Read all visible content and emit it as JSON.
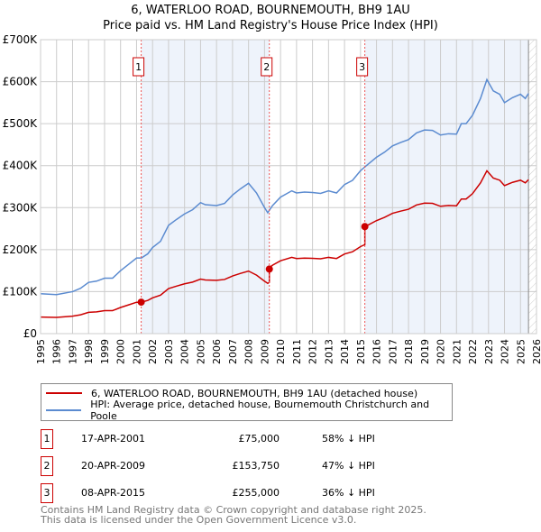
{
  "chart_data": {
    "type": "line",
    "title": "6, WATERLOO ROAD, BOURNEMOUTH, BH9 1AU",
    "subtitle": "Price paid vs. HM Land Registry's House Price Index (HPI)",
    "xlim": [
      1995,
      2026
    ],
    "ylim": [
      0,
      700000
    ],
    "yticks": [
      {
        "v": 0,
        "label": "£0"
      },
      {
        "v": 100000,
        "label": "£100K"
      },
      {
        "v": 200000,
        "label": "£200K"
      },
      {
        "v": 300000,
        "label": "£300K"
      },
      {
        "v": 400000,
        "label": "£400K"
      },
      {
        "v": 500000,
        "label": "£500K"
      },
      {
        "v": 600000,
        "label": "£600K"
      },
      {
        "v": 700000,
        "label": "£700K"
      }
    ],
    "xticks": [
      "1995",
      "1996",
      "1997",
      "1998",
      "1999",
      "2000",
      "2001",
      "2002",
      "2003",
      "2004",
      "2005",
      "2006",
      "2007",
      "2008",
      "2009",
      "2010",
      "2011",
      "2012",
      "2013",
      "2014",
      "2015",
      "2016",
      "2017",
      "2018",
      "2019",
      "2020",
      "2021",
      "2022",
      "2023",
      "2024",
      "2025",
      "2026"
    ],
    "hpi": {
      "name": "HPI: Average price, detached house, Bournemouth Christchurch and Poole",
      "color": "#5b8bd0",
      "x": [
        1995,
        1996,
        1997,
        1997.5,
        1998,
        1998.5,
        1999,
        1999.5,
        2000,
        2000.5,
        2001,
        2001.3,
        2001.7,
        2002,
        2002.5,
        2003,
        2003.5,
        2004,
        2004.5,
        2005,
        2005.3,
        2006,
        2006.5,
        2007,
        2007.5,
        2008,
        2008.5,
        2009,
        2009.2,
        2009.5,
        2010,
        2010.7,
        2011,
        2011.5,
        2012,
        2012.5,
        2013,
        2013.5,
        2014,
        2014.5,
        2015,
        2015.3,
        2016,
        2016.5,
        2017,
        2017.5,
        2018,
        2018.5,
        2019,
        2019.5,
        2020,
        2020.5,
        2021,
        2021.3,
        2021.6,
        2022,
        2022.5,
        2022.9,
        2023.3,
        2023.7,
        2024,
        2024.5,
        2025,
        2025.3,
        2025.5
      ],
      "y": [
        95000,
        93000,
        100000,
        108000,
        122000,
        125000,
        132000,
        132000,
        150000,
        165000,
        180000,
        180000,
        190000,
        205000,
        220000,
        258000,
        272000,
        285000,
        295000,
        312000,
        307000,
        305000,
        310000,
        330000,
        345000,
        358000,
        335000,
        300000,
        288000,
        305000,
        325000,
        340000,
        335000,
        337000,
        336000,
        334000,
        340000,
        335000,
        355000,
        365000,
        388000,
        398000,
        420000,
        432000,
        447000,
        455000,
        462000,
        478000,
        485000,
        484000,
        473000,
        476000,
        475000,
        500000,
        500000,
        520000,
        560000,
        605000,
        578000,
        570000,
        550000,
        562000,
        570000,
        560000,
        572000
      ]
    },
    "property": {
      "name": "6, WATERLOO ROAD, BOURNEMOUTH, BH9 1AU (detached house)",
      "color": "#cc0000",
      "segments": [
        {
          "from": 1995,
          "to": 2001.29,
          "ratio": 0.415
        },
        {
          "from": 2001.29,
          "to": 2009.3,
          "ratio": 0.416
        },
        {
          "from": 2009.3,
          "to": 2015.27,
          "ratio": 0.534
        },
        {
          "from": 2015.27,
          "to": 2025.6,
          "ratio": 0.641
        }
      ]
    },
    "sales": [
      {
        "n": "1",
        "x": 2001.29,
        "date": "17-APR-2001",
        "price_value": 75000,
        "price": "£75,000",
        "hpi": "58% ↓ HPI"
      },
      {
        "n": "2",
        "x": 2009.3,
        "date": "20-APR-2009",
        "price_value": 153750,
        "price": "£153,750",
        "hpi": "47% ↓ HPI"
      },
      {
        "n": "3",
        "x": 2015.27,
        "date": "08-APR-2015",
        "price_value": 255000,
        "price": "£255,000",
        "hpi": "36% ↓ HPI"
      }
    ],
    "shaded_ranges": [
      [
        2001.29,
        2009.3
      ],
      [
        2015.27,
        2025.5
      ]
    ],
    "hatch_from": 2025.5
  },
  "footer": {
    "line1": "Contains HM Land Registry data © Crown copyright and database right 2025.",
    "line2": "This data is licensed under the Open Government Licence v3.0."
  }
}
